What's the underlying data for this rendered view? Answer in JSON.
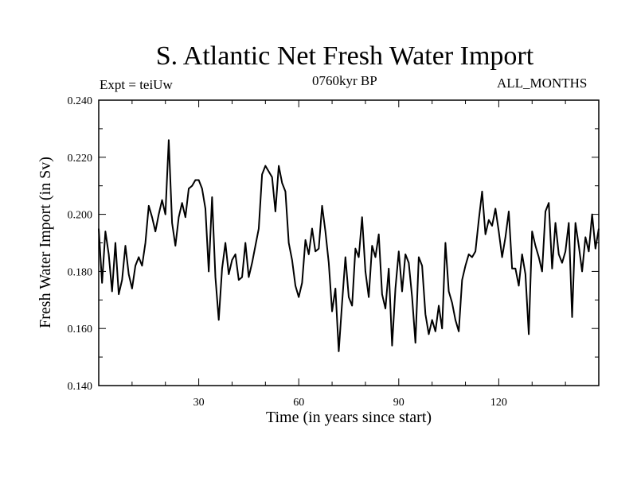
{
  "chart_data": {
    "type": "line",
    "title": "S. Atlantic Net Fresh Water Import",
    "subtitle": "0760kyr BP",
    "expt_label": "Expt = teiUw",
    "months_label": "ALL_MONTHS",
    "xlabel": "Time (in years since start)",
    "ylabel": "Fresh Water Import (in Sv)",
    "xlim": [
      0,
      150
    ],
    "ylim": [
      0.14,
      0.24
    ],
    "x_ticks": [
      30,
      60,
      90,
      120
    ],
    "y_ticks": [
      0.14,
      0.16,
      0.18,
      0.2,
      0.22,
      0.24
    ],
    "y_tick_labels": [
      "0.140",
      "0.160",
      "0.180",
      "0.200",
      "0.220",
      "0.240"
    ],
    "series": [
      {
        "name": "fresh water import",
        "x": [
          0,
          1,
          2,
          3,
          4,
          5,
          6,
          7,
          8,
          9,
          10,
          11,
          12,
          13,
          14,
          15,
          16,
          17,
          18,
          19,
          20,
          21,
          22,
          23,
          24,
          25,
          26,
          27,
          28,
          29,
          30,
          31,
          32,
          33,
          34,
          35,
          36,
          37,
          38,
          39,
          40,
          41,
          42,
          43,
          44,
          45,
          46,
          47,
          48,
          49,
          50,
          51,
          52,
          53,
          54,
          55,
          56,
          57,
          58,
          59,
          60,
          61,
          62,
          63,
          64,
          65,
          66,
          67,
          68,
          69,
          70,
          71,
          72,
          73,
          74,
          75,
          76,
          77,
          78,
          79,
          80,
          81,
          82,
          83,
          84,
          85,
          86,
          87,
          88,
          89,
          90,
          91,
          92,
          93,
          94,
          95,
          96,
          97,
          98,
          99,
          100,
          101,
          102,
          103,
          104,
          105,
          106,
          107,
          108,
          109,
          110,
          111,
          112,
          113,
          114,
          115,
          116,
          117,
          118,
          119,
          120,
          121,
          122,
          123,
          124,
          125,
          126,
          127,
          128,
          129,
          130,
          131,
          132,
          133,
          134,
          135,
          136,
          137,
          138,
          139,
          140,
          141,
          142,
          143,
          144,
          145,
          146,
          147,
          148,
          149,
          150
        ],
        "values": [
          0.195,
          0.176,
          0.194,
          0.186,
          0.173,
          0.19,
          0.172,
          0.177,
          0.189,
          0.179,
          0.174,
          0.182,
          0.185,
          0.182,
          0.19,
          0.203,
          0.199,
          0.194,
          0.2,
          0.205,
          0.2,
          0.226,
          0.197,
          0.189,
          0.199,
          0.204,
          0.199,
          0.209,
          0.21,
          0.212,
          0.212,
          0.209,
          0.202,
          0.18,
          0.206,
          0.178,
          0.163,
          0.181,
          0.19,
          0.179,
          0.184,
          0.186,
          0.177,
          0.178,
          0.19,
          0.178,
          0.183,
          0.189,
          0.195,
          0.214,
          0.217,
          0.215,
          0.213,
          0.201,
          0.217,
          0.211,
          0.208,
          0.19,
          0.184,
          0.175,
          0.171,
          0.176,
          0.191,
          0.186,
          0.195,
          0.187,
          0.188,
          0.203,
          0.194,
          0.183,
          0.166,
          0.174,
          0.152,
          0.169,
          0.185,
          0.171,
          0.168,
          0.188,
          0.185,
          0.199,
          0.18,
          0.171,
          0.189,
          0.185,
          0.193,
          0.172,
          0.167,
          0.181,
          0.154,
          0.174,
          0.187,
          0.173,
          0.186,
          0.183,
          0.171,
          0.155,
          0.185,
          0.182,
          0.165,
          0.158,
          0.163,
          0.159,
          0.168,
          0.16,
          0.19,
          0.173,
          0.169,
          0.163,
          0.159,
          0.177,
          0.182,
          0.186,
          0.185,
          0.187,
          0.198,
          0.208,
          0.193,
          0.198,
          0.196,
          0.202,
          0.194,
          0.185,
          0.192,
          0.201,
          0.181,
          0.181,
          0.175,
          0.186,
          0.179,
          0.158,
          0.194,
          0.189,
          0.185,
          0.18,
          0.201,
          0.204,
          0.181,
          0.197,
          0.186,
          0.183,
          0.187,
          0.197,
          0.164,
          0.197,
          0.189,
          0.18,
          0.192,
          0.187,
          0.2,
          0.188,
          0.195
        ]
      }
    ]
  }
}
